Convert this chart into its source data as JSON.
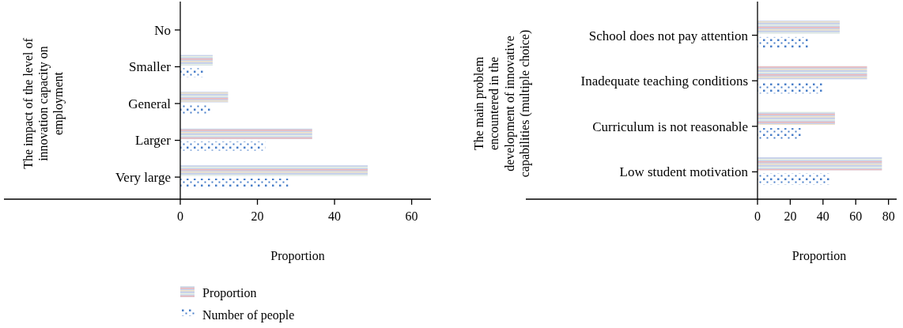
{
  "chart_data": [
    {
      "type": "bar",
      "orientation": "horizontal",
      "ylabel": "The impact of the level of innovation capacity on employment",
      "xlabel": "Proportion",
      "categories": [
        "No",
        "Smaller",
        "General",
        "Larger",
        "Very large"
      ],
      "series": [
        {
          "name": "Proportion",
          "color": "#c8d2ea",
          "values": [
            0,
            8.4,
            12.4,
            34.2,
            48.6
          ]
        },
        {
          "name": "Number of people",
          "color": "#4a7fc9",
          "values": [
            0,
            6,
            8,
            22,
            28
          ]
        }
      ],
      "xlim": [
        0,
        65
      ],
      "xticks": [
        0,
        20,
        40,
        60
      ],
      "legend": "bottom"
    },
    {
      "type": "bar",
      "orientation": "horizontal",
      "ylabel": "The main problem encountered in the development of innovative capabilities (multiple choice)",
      "xlabel": "Proportion",
      "categories": [
        "School does not pay attention",
        "Inadequate teaching conditions",
        "Curriculum is not reasonable",
        "Low student motivation"
      ],
      "series": [
        {
          "color": "#c8d2ea",
          "values": [
            50.2,
            66.9,
            47.3,
            76
          ]
        },
        {
          "color": "#4a7fc9",
          "values": [
            31,
            40,
            27,
            44
          ]
        }
      ],
      "xlim": [
        0,
        85
      ],
      "xticks": [
        0,
        20,
        40,
        60,
        80
      ]
    }
  ]
}
